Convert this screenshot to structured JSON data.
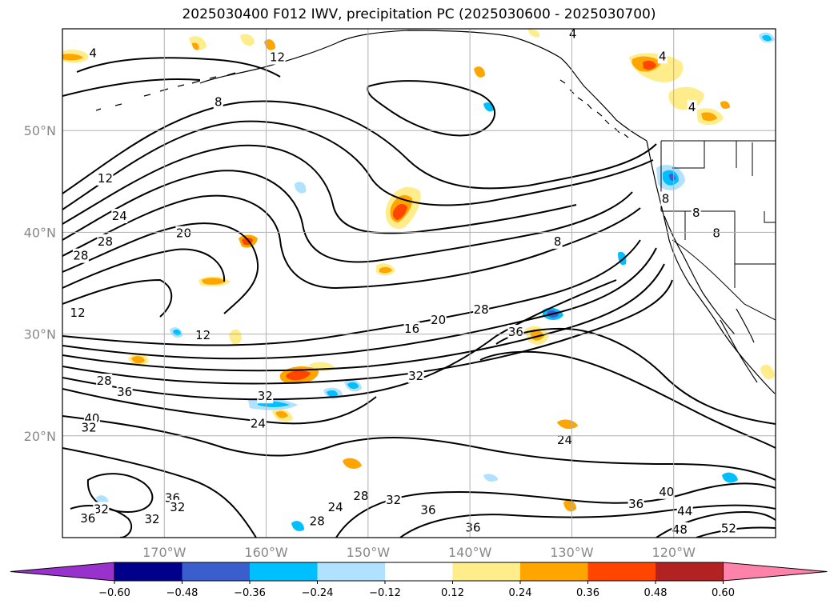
{
  "title": "2025030400 F012 IWV, precipitation PC (2025030600 - 2025030700)",
  "chart_data": {
    "type": "map-contour",
    "title": "2025030400 F012 IWV, precipitation PC (2025030600 - 2025030700)",
    "lon_range": [
      -180,
      -110
    ],
    "lat_range": [
      10,
      60
    ],
    "lat_ticks": [
      {
        "value": 50,
        "label": "50°N"
      },
      {
        "value": 40,
        "label": "40°N"
      },
      {
        "value": 30,
        "label": "30°N"
      },
      {
        "value": 20,
        "label": "20°N"
      }
    ],
    "lon_ticks": [
      {
        "value": -170,
        "label": "170°W"
      },
      {
        "value": -160,
        "label": "160°W"
      },
      {
        "value": -150,
        "label": "150°W"
      },
      {
        "value": -140,
        "label": "140°W"
      },
      {
        "value": -130,
        "label": "130°W"
      },
      {
        "value": -120,
        "label": "120°W"
      }
    ],
    "grid": true,
    "iwv_contour_labels": [
      {
        "text": "4",
        "lon": -177,
        "lat": 57.6
      },
      {
        "text": "12",
        "lon": -158.9,
        "lat": 57.2
      },
      {
        "text": "4",
        "lon": -129.9,
        "lat": 59.5
      },
      {
        "text": "4",
        "lon": -121.1,
        "lat": 57.3
      },
      {
        "text": "8",
        "lon": -164.7,
        "lat": 52.8
      },
      {
        "text": "4",
        "lon": -118.2,
        "lat": 52.3
      },
      {
        "text": "12",
        "lon": -175.8,
        "lat": 45.3
      },
      {
        "text": "24",
        "lon": -174.4,
        "lat": 41.6
      },
      {
        "text": "28",
        "lon": -175.8,
        "lat": 39.1
      },
      {
        "text": "28",
        "lon": -178.2,
        "lat": 37.7
      },
      {
        "text": "20",
        "lon": -168.1,
        "lat": 39.9
      },
      {
        "text": "8",
        "lon": -131.4,
        "lat": 39.1
      },
      {
        "text": "8",
        "lon": -120.8,
        "lat": 43.3
      },
      {
        "text": "8",
        "lon": -117.8,
        "lat": 41.9
      },
      {
        "text": "8",
        "lon": -115.8,
        "lat": 39.9
      },
      {
        "text": "12",
        "lon": -178.5,
        "lat": 32.1
      },
      {
        "text": "12",
        "lon": -166.2,
        "lat": 29.9
      },
      {
        "text": "16",
        "lon": -145.7,
        "lat": 30.5
      },
      {
        "text": "20",
        "lon": -143.1,
        "lat": 31.4
      },
      {
        "text": "28",
        "lon": -138.9,
        "lat": 32.4
      },
      {
        "text": "36",
        "lon": -135.5,
        "lat": 30.2
      },
      {
        "text": "32",
        "lon": -145.3,
        "lat": 25.9
      },
      {
        "text": "28",
        "lon": -175.9,
        "lat": 25.4
      },
      {
        "text": "36",
        "lon": -173.9,
        "lat": 24.3
      },
      {
        "text": "32",
        "lon": -160.1,
        "lat": 23.9
      },
      {
        "text": "24",
        "lon": -160.8,
        "lat": 21.2
      },
      {
        "text": "40",
        "lon": -177.1,
        "lat": 21.7
      },
      {
        "text": "32",
        "lon": -177.4,
        "lat": 20.8
      },
      {
        "text": "24",
        "lon": -130.7,
        "lat": 19.6
      },
      {
        "text": "28",
        "lon": -150.7,
        "lat": 14.1
      },
      {
        "text": "32",
        "lon": -147.5,
        "lat": 13.7
      },
      {
        "text": "24",
        "lon": -153.2,
        "lat": 13.0
      },
      {
        "text": "36",
        "lon": -144.1,
        "lat": 12.7
      },
      {
        "text": "36",
        "lon": -169.2,
        "lat": 13.9
      },
      {
        "text": "32",
        "lon": -176.2,
        "lat": 12.8
      },
      {
        "text": "36",
        "lon": -177.5,
        "lat": 11.9
      },
      {
        "text": "32",
        "lon": -168.7,
        "lat": 13.0
      },
      {
        "text": "32",
        "lon": -171.2,
        "lat": 11.8
      },
      {
        "text": "28",
        "lon": -155.0,
        "lat": 11.6
      },
      {
        "text": "36",
        "lon": -139.7,
        "lat": 11.0
      },
      {
        "text": "36",
        "lon": -123.7,
        "lat": 13.3
      },
      {
        "text": "40",
        "lon": -120.7,
        "lat": 14.5
      },
      {
        "text": "44",
        "lon": -118.9,
        "lat": 12.6
      },
      {
        "text": "48",
        "lon": -119.4,
        "lat": 10.8
      },
      {
        "text": "52",
        "lon": -114.6,
        "lat": 10.9
      }
    ],
    "precip_pc_colorbar": {
      "boundaries": [
        -0.6,
        -0.48,
        -0.36,
        -0.24,
        -0.12,
        0.12,
        0.24,
        0.36,
        0.48,
        0.6
      ],
      "tick_labels": [
        "−0.60",
        "−0.48",
        "−0.36",
        "−0.24",
        "−0.12",
        "0.12",
        "0.24",
        "0.36",
        "0.48",
        "0.60"
      ],
      "colors": [
        "#9932cc",
        "#00008b",
        "#3a5fcd",
        "#00bfff",
        "#b0e2ff",
        "#ffffff",
        "#ffec8b",
        "#ffa500",
        "#ff4500",
        "#b22222",
        "#ff82ab"
      ],
      "extend": "both"
    }
  }
}
